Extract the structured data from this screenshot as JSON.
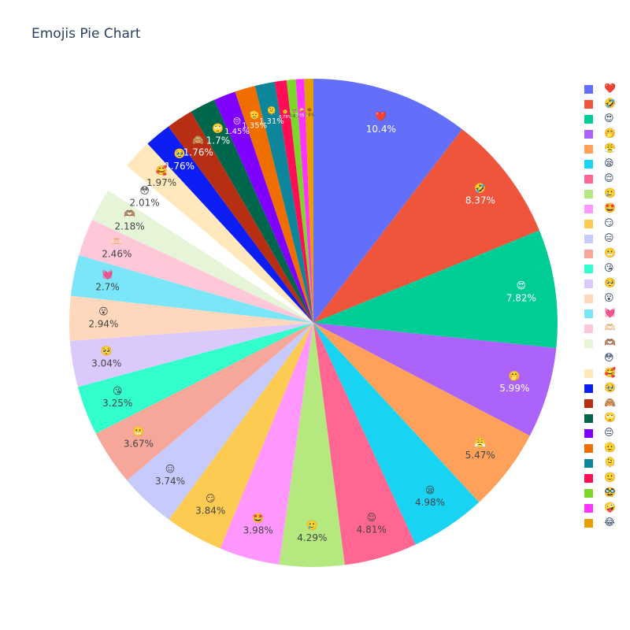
{
  "chart_data": {
    "type": "pie",
    "title": "Emojis Pie Chart",
    "legend_placement": "right",
    "direction": "clockwise",
    "start_angle_deg": 90,
    "slices": [
      {
        "label": "❤️",
        "value": 10.4,
        "text": "10.4%",
        "color": "#636efa"
      },
      {
        "label": "🤣",
        "value": 8.37,
        "text": "8.37%",
        "color": "#EF553B"
      },
      {
        "label": "😍",
        "value": 7.82,
        "text": "7.82%",
        "color": "#00cc96"
      },
      {
        "label": "🤭",
        "value": 5.99,
        "text": "5.99%",
        "color": "#ab63fa"
      },
      {
        "label": "😤",
        "value": 5.47,
        "text": "5.47%",
        "color": "#FFA15A"
      },
      {
        "label": "😪",
        "value": 4.98,
        "text": "4.98%",
        "color": "#19d3f3"
      },
      {
        "label": "😌",
        "value": 4.81,
        "text": "4.81%",
        "color": "#FF6692"
      },
      {
        "label": "🥲",
        "value": 4.29,
        "text": "4.29%",
        "color": "#B6E880"
      },
      {
        "label": "🤩",
        "value": 3.98,
        "text": "3.98%",
        "color": "#FF97FF"
      },
      {
        "label": "😏",
        "value": 3.84,
        "text": "3.84%",
        "color": "#FECB52"
      },
      {
        "label": "😑",
        "value": 3.74,
        "text": "3.74%",
        "color": "#c6cafd"
      },
      {
        "label": "😬",
        "value": 3.67,
        "text": "3.67%",
        "color": "#f7a799"
      },
      {
        "label": "😘",
        "value": 3.25,
        "text": "3.25%",
        "color": "#33ffcc"
      },
      {
        "label": "🥺",
        "value": 3.04,
        "text": "3.04%",
        "color": "#dcc9fc"
      },
      {
        "label": "😮",
        "value": 2.94,
        "text": "2.94%",
        "color": "#ffd7bd"
      },
      {
        "label": "💓",
        "value": 2.7,
        "text": "2.7%",
        "color": "#7be6f8"
      },
      {
        "label": "🫶🏻",
        "value": 2.46,
        "text": "2.46%",
        "color": "#ffc8d9"
      },
      {
        "label": "🫶🏽",
        "value": 2.18,
        "text": "2.18%",
        "color": "#e6f5d8"
      },
      {
        "label": "😳",
        "value": 2.01,
        "text": "2.01%",
        "color": "#ffffff"
      },
      {
        "label": "🥰",
        "value": 1.97,
        "text": "1.97%",
        "color": "#ffe8bb"
      },
      {
        "label": "🥹",
        "value": 1.76,
        "text": "1.76%",
        "color": "#0d1ef5"
      },
      {
        "label": "🙈",
        "value": 1.76,
        "text": "1.76%",
        "color": "#b82e13"
      },
      {
        "label": "🙄",
        "value": 1.7,
        "text": "1.7%",
        "color": "#00664b"
      },
      {
        "label": "😔",
        "value": 1.45,
        "text": "1.45%",
        "color": "#7f00ff"
      },
      {
        "label": "🫡",
        "value": 1.35,
        "text": "1.35%",
        "color": "#f06e00"
      },
      {
        "label": "🫠",
        "value": 1.31,
        "text": "1.31%",
        "color": "#0d859a"
      },
      {
        "label": "🙂",
        "value": 0.78,
        "text": "0.78%",
        "color": "#ff0d55"
      },
      {
        "label": "🥸",
        "value": 0.6,
        "text": "0.6%",
        "color": "#7dd62c"
      },
      {
        "label": "🤪",
        "value": 0.55,
        "text": "0.55%",
        "color": "#ff33ff"
      },
      {
        "label": "😂",
        "value": 0.6,
        "text": "0.6%",
        "color": "#e69e00"
      }
    ]
  }
}
